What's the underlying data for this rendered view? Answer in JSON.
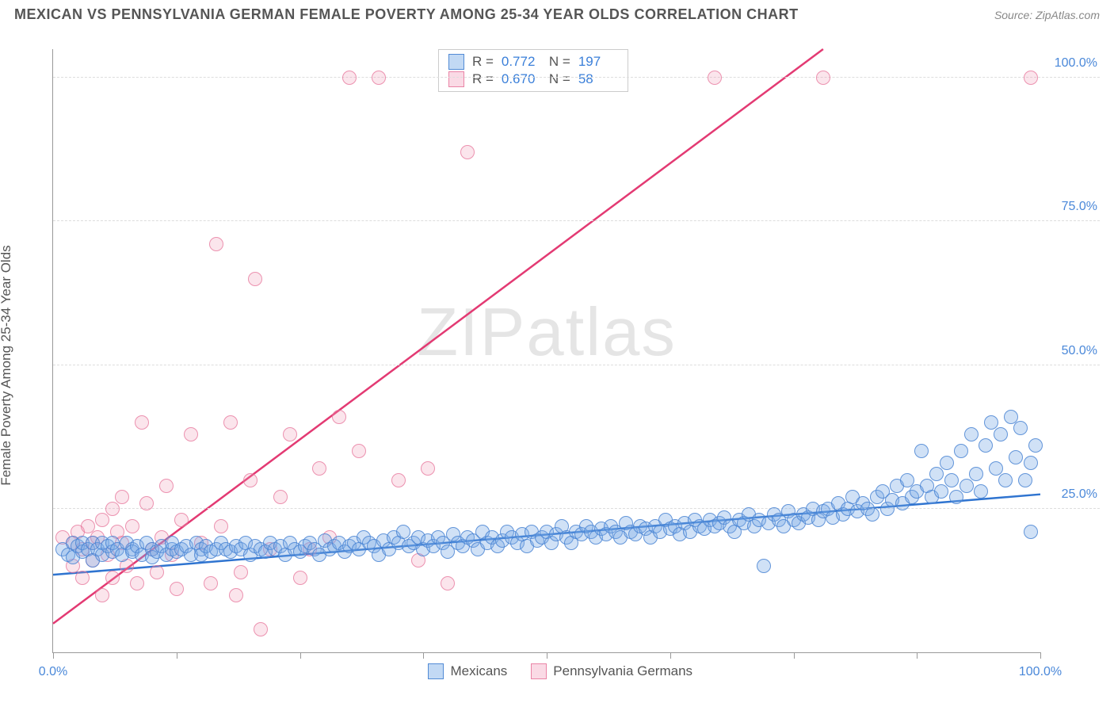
{
  "header": {
    "title": "MEXICAN VS PENNSYLVANIA GERMAN FEMALE POVERTY AMONG 25-34 YEAR OLDS CORRELATION CHART",
    "source": "Source: ZipAtlas.com"
  },
  "chart": {
    "type": "scatter",
    "y_axis_label": "Female Poverty Among 25-34 Year Olds",
    "watermark": "ZIPatlas",
    "xlim": [
      0,
      100
    ],
    "ylim": [
      0,
      105
    ],
    "x_ticks": [
      0,
      12.5,
      25,
      37.5,
      50,
      62.5,
      75,
      87.5,
      100
    ],
    "x_tick_labels": {
      "0": "0.0%",
      "100": "100.0%"
    },
    "y_gridlines": [
      25,
      50,
      75,
      100
    ],
    "y_tick_labels": {
      "25": "25.0%",
      "50": "50.0%",
      "75": "75.0%",
      "100": "100.0%"
    },
    "background_color": "#ffffff",
    "grid_color": "#dddddd",
    "axis_color": "#999999",
    "series": [
      {
        "name": "Mexicans",
        "color_fill": "rgba(120,170,230,0.35)",
        "color_stroke": "#4a88d9",
        "marker_radius": 9,
        "R": "0.772",
        "N": "197",
        "trend": {
          "x1": 0,
          "y1": 13.5,
          "x2": 100,
          "y2": 27.5,
          "color": "#2f74d0",
          "width": 2.5
        },
        "points": [
          [
            1,
            18
          ],
          [
            1.5,
            17
          ],
          [
            2,
            19
          ],
          [
            2,
            16.5
          ],
          [
            2.5,
            18.5
          ],
          [
            3,
            17.5
          ],
          [
            3,
            19
          ],
          [
            3.5,
            18
          ],
          [
            4,
            19
          ],
          [
            4,
            16
          ],
          [
            4.5,
            18
          ],
          [
            5,
            17
          ],
          [
            5,
            19
          ],
          [
            5.5,
            18.5
          ],
          [
            6,
            17.5
          ],
          [
            6,
            19
          ],
          [
            6.5,
            18
          ],
          [
            7,
            17
          ],
          [
            7.5,
            19
          ],
          [
            8,
            18
          ],
          [
            8,
            17.5
          ],
          [
            8.5,
            18.5
          ],
          [
            9,
            17
          ],
          [
            9.5,
            19
          ],
          [
            10,
            18
          ],
          [
            10,
            16.5
          ],
          [
            10.5,
            17.5
          ],
          [
            11,
            18.5
          ],
          [
            11.5,
            17
          ],
          [
            12,
            18
          ],
          [
            12,
            19
          ],
          [
            12.5,
            17.5
          ],
          [
            13,
            18
          ],
          [
            13.5,
            18.5
          ],
          [
            14,
            17
          ],
          [
            14.5,
            19
          ],
          [
            15,
            18
          ],
          [
            15,
            17
          ],
          [
            15.5,
            18.5
          ],
          [
            16,
            17.5
          ],
          [
            16.5,
            18
          ],
          [
            17,
            19
          ],
          [
            17.5,
            18
          ],
          [
            18,
            17.5
          ],
          [
            18.5,
            18.5
          ],
          [
            19,
            18
          ],
          [
            19.5,
            19
          ],
          [
            20,
            17
          ],
          [
            20.5,
            18.5
          ],
          [
            21,
            18
          ],
          [
            21.5,
            17.5
          ],
          [
            22,
            19
          ],
          [
            22.5,
            18
          ],
          [
            23,
            18.5
          ],
          [
            23.5,
            17
          ],
          [
            24,
            19
          ],
          [
            24.5,
            18
          ],
          [
            25,
            17.5
          ],
          [
            25.5,
            18.5
          ],
          [
            26,
            19
          ],
          [
            26.5,
            18
          ],
          [
            27,
            17
          ],
          [
            27.5,
            19.5
          ],
          [
            28,
            18
          ],
          [
            28.5,
            18.5
          ],
          [
            29,
            19
          ],
          [
            29.5,
            17.5
          ],
          [
            30,
            18.5
          ],
          [
            30.5,
            19
          ],
          [
            31,
            18
          ],
          [
            31.5,
            20
          ],
          [
            32,
            19
          ],
          [
            32.5,
            18.5
          ],
          [
            33,
            17
          ],
          [
            33.5,
            19.5
          ],
          [
            34,
            18
          ],
          [
            34.5,
            20
          ],
          [
            35,
            19
          ],
          [
            35.5,
            21
          ],
          [
            36,
            18.5
          ],
          [
            36.5,
            19
          ],
          [
            37,
            20
          ],
          [
            37.5,
            18
          ],
          [
            38,
            19.5
          ],
          [
            38.5,
            18.5
          ],
          [
            39,
            20
          ],
          [
            39.5,
            19
          ],
          [
            40,
            17.5
          ],
          [
            40.5,
            20.5
          ],
          [
            41,
            19
          ],
          [
            41.5,
            18.5
          ],
          [
            42,
            20
          ],
          [
            42.5,
            19.5
          ],
          [
            43,
            18
          ],
          [
            43.5,
            21
          ],
          [
            44,
            19
          ],
          [
            44.5,
            20
          ],
          [
            45,
            18.5
          ],
          [
            45.5,
            19.5
          ],
          [
            46,
            21
          ],
          [
            46.5,
            20
          ],
          [
            47,
            19
          ],
          [
            47.5,
            20.5
          ],
          [
            48,
            18.5
          ],
          [
            48.5,
            21
          ],
          [
            49,
            19.5
          ],
          [
            49.5,
            20
          ],
          [
            50,
            21
          ],
          [
            50.5,
            19
          ],
          [
            51,
            20.5
          ],
          [
            51.5,
            22
          ],
          [
            52,
            20
          ],
          [
            52.5,
            19
          ],
          [
            53,
            21
          ],
          [
            53.5,
            20.5
          ],
          [
            54,
            22
          ],
          [
            54.5,
            21
          ],
          [
            55,
            20
          ],
          [
            55.5,
            21.5
          ],
          [
            56,
            20.5
          ],
          [
            56.5,
            22
          ],
          [
            57,
            21
          ],
          [
            57.5,
            20
          ],
          [
            58,
            22.5
          ],
          [
            58.5,
            21
          ],
          [
            59,
            20.5
          ],
          [
            59.5,
            22
          ],
          [
            60,
            21.5
          ],
          [
            60.5,
            20
          ],
          [
            61,
            22
          ],
          [
            61.5,
            21
          ],
          [
            62,
            23
          ],
          [
            62.5,
            21.5
          ],
          [
            63,
            22
          ],
          [
            63.5,
            20.5
          ],
          [
            64,
            22.5
          ],
          [
            64.5,
            21
          ],
          [
            65,
            23
          ],
          [
            65.5,
            22
          ],
          [
            66,
            21.5
          ],
          [
            66.5,
            23
          ],
          [
            67,
            22
          ],
          [
            67.5,
            22.5
          ],
          [
            68,
            23.5
          ],
          [
            68.5,
            22
          ],
          [
            69,
            21
          ],
          [
            69.5,
            23
          ],
          [
            70,
            22.5
          ],
          [
            70.5,
            24
          ],
          [
            71,
            22
          ],
          [
            71.5,
            23
          ],
          [
            72,
            15
          ],
          [
            72.5,
            22.5
          ],
          [
            73,
            24
          ],
          [
            73.5,
            23
          ],
          [
            74,
            22
          ],
          [
            74.5,
            24.5
          ],
          [
            75,
            23
          ],
          [
            75.5,
            22.5
          ],
          [
            76,
            24
          ],
          [
            76.5,
            23.5
          ],
          [
            77,
            25
          ],
          [
            77.5,
            23
          ],
          [
            78,
            24.5
          ],
          [
            78.5,
            25
          ],
          [
            79,
            23.5
          ],
          [
            79.5,
            26
          ],
          [
            80,
            24
          ],
          [
            80.5,
            25
          ],
          [
            81,
            27
          ],
          [
            81.5,
            24.5
          ],
          [
            82,
            26
          ],
          [
            82.5,
            25
          ],
          [
            83,
            24
          ],
          [
            83.5,
            27
          ],
          [
            84,
            28
          ],
          [
            84.5,
            25
          ],
          [
            85,
            26.5
          ],
          [
            85.5,
            29
          ],
          [
            86,
            26
          ],
          [
            86.5,
            30
          ],
          [
            87,
            27
          ],
          [
            87.5,
            28
          ],
          [
            88,
            35
          ],
          [
            88.5,
            29
          ],
          [
            89,
            27
          ],
          [
            89.5,
            31
          ],
          [
            90,
            28
          ],
          [
            90.5,
            33
          ],
          [
            91,
            30
          ],
          [
            91.5,
            27
          ],
          [
            92,
            35
          ],
          [
            92.5,
            29
          ],
          [
            93,
            38
          ],
          [
            93.5,
            31
          ],
          [
            94,
            28
          ],
          [
            94.5,
            36
          ],
          [
            95,
            40
          ],
          [
            95.5,
            32
          ],
          [
            96,
            38
          ],
          [
            96.5,
            30
          ],
          [
            97,
            41
          ],
          [
            97.5,
            34
          ],
          [
            98,
            39
          ],
          [
            98.5,
            30
          ],
          [
            99,
            33
          ],
          [
            99,
            21
          ],
          [
            99.5,
            36
          ]
        ]
      },
      {
        "name": "Pennsylvania Germans",
        "color_fill": "rgba(240,150,180,0.25)",
        "color_stroke": "#e66e96",
        "marker_radius": 9,
        "R": "0.670",
        "N": "58",
        "trend": {
          "x1": 0,
          "y1": 5,
          "x2": 78,
          "y2": 105,
          "color": "#e33a73",
          "width": 2.5
        },
        "points": [
          [
            1,
            20
          ],
          [
            2,
            19
          ],
          [
            2,
            15
          ],
          [
            2.5,
            21
          ],
          [
            3,
            18
          ],
          [
            3,
            13
          ],
          [
            3.5,
            22
          ],
          [
            4,
            19
          ],
          [
            4,
            16
          ],
          [
            4.5,
            20
          ],
          [
            5,
            10
          ],
          [
            5,
            23
          ],
          [
            5.5,
            17
          ],
          [
            6,
            13
          ],
          [
            6,
            25
          ],
          [
            6.5,
            21
          ],
          [
            7,
            19
          ],
          [
            7,
            27
          ],
          [
            7.5,
            15
          ],
          [
            8,
            22
          ],
          [
            8.5,
            12
          ],
          [
            9,
            40
          ],
          [
            9.5,
            26
          ],
          [
            10,
            18
          ],
          [
            10.5,
            14
          ],
          [
            11,
            20
          ],
          [
            11.5,
            29
          ],
          [
            12,
            17
          ],
          [
            12.5,
            11
          ],
          [
            13,
            23
          ],
          [
            14,
            38
          ],
          [
            15,
            19
          ],
          [
            16,
            12
          ],
          [
            16.5,
            71
          ],
          [
            17,
            22
          ],
          [
            18,
            40
          ],
          [
            18.5,
            10
          ],
          [
            19,
            14
          ],
          [
            20,
            30
          ],
          [
            20.5,
            65
          ],
          [
            21,
            4
          ],
          [
            22,
            18
          ],
          [
            23,
            27
          ],
          [
            24,
            38
          ],
          [
            25,
            13
          ],
          [
            26,
            18
          ],
          [
            27,
            32
          ],
          [
            28,
            20
          ],
          [
            29,
            41
          ],
          [
            30,
            100
          ],
          [
            31,
            35
          ],
          [
            33,
            100
          ],
          [
            35,
            30
          ],
          [
            37,
            16
          ],
          [
            38,
            32
          ],
          [
            40,
            12
          ],
          [
            42,
            87
          ],
          [
            67,
            100
          ],
          [
            78,
            100
          ],
          [
            99,
            100
          ]
        ]
      }
    ],
    "legend": [
      {
        "label": "Mexicans",
        "class": "blue"
      },
      {
        "label": "Pennsylvania Germans",
        "class": "pink"
      }
    ]
  }
}
